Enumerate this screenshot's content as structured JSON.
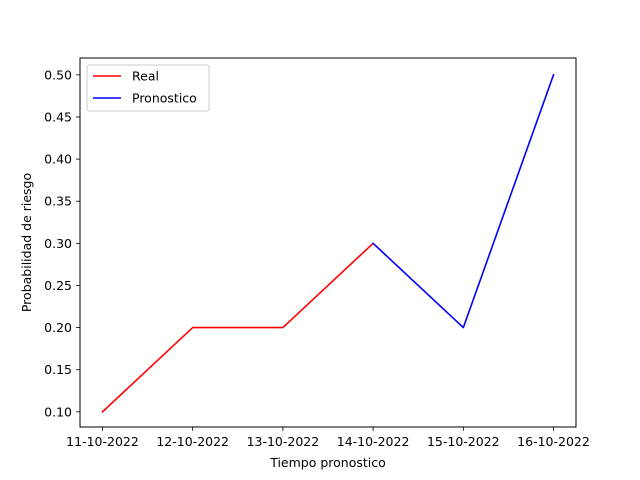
{
  "chart_data": {
    "type": "line",
    "title": "",
    "xlabel": "Tiempo pronostico",
    "ylabel": "Probabilidad de riesgo",
    "categories": [
      "11-10-2022",
      "12-10-2022",
      "13-10-2022",
      "14-10-2022",
      "15-10-2022",
      "16-10-2022"
    ],
    "ylim": [
      0.082,
      0.52
    ],
    "yticks": [
      "0.10",
      "0.15",
      "0.20",
      "0.25",
      "0.30",
      "0.35",
      "0.40",
      "0.45",
      "0.50"
    ],
    "grid": false,
    "legend_position": "upper-left",
    "series": [
      {
        "name": "Real",
        "color": "#ff0000",
        "points": [
          {
            "x": "11-10-2022",
            "y": 0.1
          },
          {
            "x": "12-10-2022",
            "y": 0.2
          },
          {
            "x": "13-10-2022",
            "y": 0.2
          },
          {
            "x": "14-10-2022",
            "y": 0.3
          }
        ]
      },
      {
        "name": "Pronostico",
        "color": "#0000ff",
        "points": [
          {
            "x": "14-10-2022",
            "y": 0.3
          },
          {
            "x": "15-10-2022",
            "y": 0.2
          },
          {
            "x": "16-10-2022",
            "y": 0.5
          }
        ]
      }
    ]
  }
}
